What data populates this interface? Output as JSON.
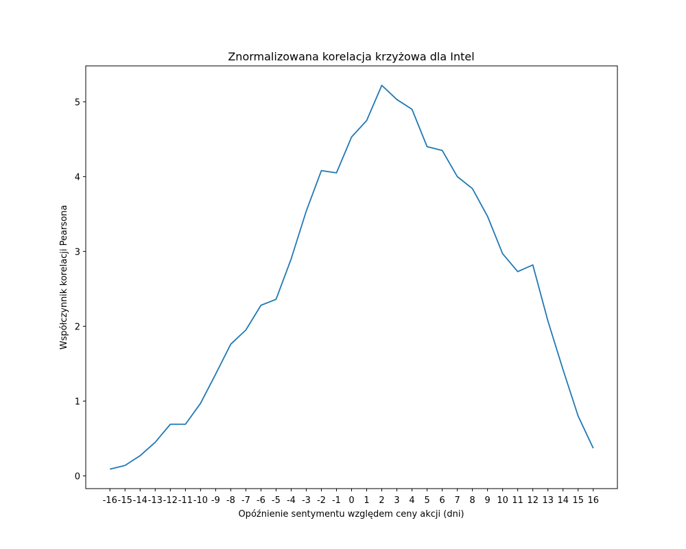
{
  "chart_data": {
    "type": "line",
    "title": "Znormalizowana korelacja krzyżowa dla Intel",
    "xlabel": "Opóźnienie sentymentu względem ceny akcji (dni)",
    "ylabel": "Współczynnik korelacji Pearsona",
    "x": [
      -16,
      -15,
      -14,
      -13,
      -12,
      -11,
      -10,
      -9,
      -8,
      -7,
      -6,
      -5,
      -4,
      -3,
      -2,
      -1,
      0,
      1,
      2,
      3,
      4,
      5,
      6,
      7,
      8,
      9,
      10,
      11,
      12,
      13,
      14,
      15,
      16
    ],
    "x_tick_labels": [
      "-16",
      "-15",
      "-14",
      "-13",
      "-12",
      "-11",
      "-10",
      "-9",
      "-8",
      "-7",
      "-6",
      "-5",
      "-4",
      "-3",
      "-2",
      "-1",
      "0",
      "1",
      "2",
      "3",
      "4",
      "5",
      "6",
      "7",
      "8",
      "9",
      "10",
      "11",
      "12",
      "13",
      "14",
      "15",
      "16"
    ],
    "series": [
      {
        "values": [
          0.09,
          0.14,
          0.27,
          0.45,
          0.69,
          0.69,
          0.97,
          1.36,
          1.76,
          1.95,
          2.28,
          2.36,
          2.9,
          3.54,
          4.08,
          4.05,
          4.53,
          4.75,
          5.22,
          5.03,
          4.9,
          4.4,
          4.35,
          4.0,
          3.84,
          3.47,
          2.97,
          2.73,
          2.82,
          2.07,
          1.42,
          0.8,
          0.37
        ],
        "color": "#1f77b4"
      }
    ],
    "y_ticks": [
      0,
      1,
      2,
      3,
      4,
      5
    ],
    "y_tick_labels": [
      "0",
      "1",
      "2",
      "3",
      "4",
      "5"
    ],
    "xlim": [
      -17.6,
      17.6
    ],
    "ylim": [
      -0.17,
      5.48
    ],
    "grid": false,
    "legend": "none"
  }
}
